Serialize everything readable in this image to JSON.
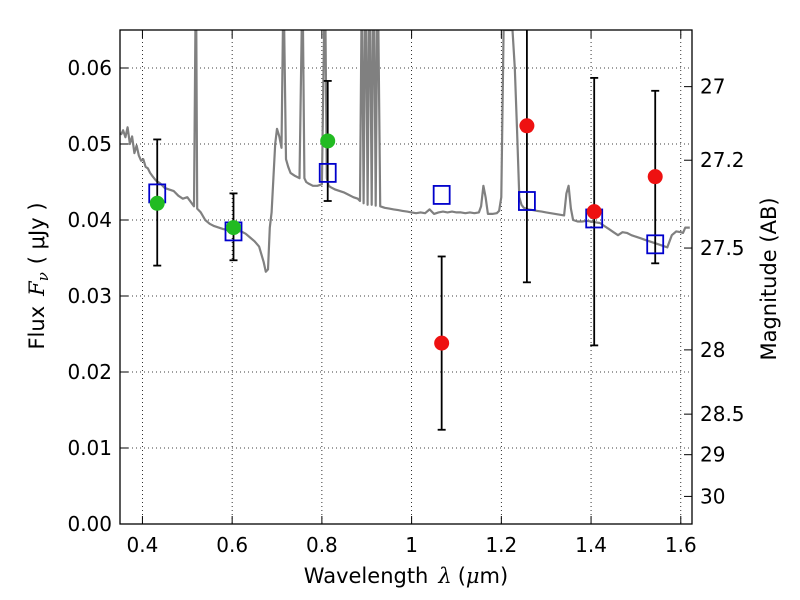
{
  "chart_data": {
    "type": "scatter",
    "title": "",
    "xlabel": "Wavelength",
    "xlabel_symbol": "λ",
    "xlabel_unit_open": "(",
    "xlabel_unit_mu": "μ",
    "xlabel_unit_rest": "m)",
    "ylabel": "Flux",
    "ylabel_symbol_main": "F",
    "ylabel_symbol_sub": "ν",
    "ylabel_unit": "( μJy )",
    "y2label": "Magnitude (AB)",
    "xlim": [
      0.35,
      1.625
    ],
    "ylim": [
      0.0,
      0.065
    ],
    "grid": true,
    "x_ticks": [
      {
        "value": 0.4,
        "label": "0.4"
      },
      {
        "value": 0.6,
        "label": "0.6"
      },
      {
        "value": 0.8,
        "label": "0.8"
      },
      {
        "value": 1.0,
        "label": "1"
      },
      {
        "value": 1.2,
        "label": "1.2"
      },
      {
        "value": 1.4,
        "label": "1.4"
      },
      {
        "value": 1.6,
        "label": "1.6"
      }
    ],
    "y_ticks": [
      {
        "value": 0.0,
        "label": "0.00"
      },
      {
        "value": 0.01,
        "label": "0.01"
      },
      {
        "value": 0.02,
        "label": "0.02"
      },
      {
        "value": 0.03,
        "label": "0.03"
      },
      {
        "value": 0.04,
        "label": "0.04"
      },
      {
        "value": 0.05,
        "label": "0.05"
      },
      {
        "value": 0.06,
        "label": "0.06"
      }
    ],
    "y2_ticks": [
      {
        "value": 27,
        "label": "27"
      },
      {
        "value": 27.2,
        "label": "27.2"
      },
      {
        "value": 27.5,
        "label": "27.5"
      },
      {
        "value": 28,
        "label": "28"
      },
      {
        "value": 28.5,
        "label": "28.5"
      },
      {
        "value": 29,
        "label": "29"
      },
      {
        "value": 30,
        "label": "30"
      }
    ],
    "colors": {
      "model": "#808080",
      "model_flux": "#0000cc",
      "green": "#22bb22",
      "red": "#ee1111",
      "errorbar": "#000000"
    },
    "model_spectrum": {
      "x": [
        0.352,
        0.357,
        0.362,
        0.367,
        0.372,
        0.377,
        0.382,
        0.387,
        0.392,
        0.397,
        0.402,
        0.407,
        0.412,
        0.417,
        0.422,
        0.43,
        0.44,
        0.45,
        0.46,
        0.47,
        0.48,
        0.49,
        0.5,
        0.51,
        0.515,
        0.518,
        0.52,
        0.522,
        0.53,
        0.54,
        0.55,
        0.56,
        0.57,
        0.58,
        0.59,
        0.6,
        0.61,
        0.62,
        0.63,
        0.64,
        0.65,
        0.66,
        0.67,
        0.675,
        0.68,
        0.684,
        0.688,
        0.692,
        0.696,
        0.7,
        0.705,
        0.71,
        0.713,
        0.716,
        0.72,
        0.725,
        0.73,
        0.74,
        0.75,
        0.755,
        0.758,
        0.761,
        0.765,
        0.77,
        0.78,
        0.79,
        0.8,
        0.805,
        0.808,
        0.811,
        0.815,
        0.82,
        0.83,
        0.84,
        0.85,
        0.86,
        0.87,
        0.88,
        0.885,
        0.888,
        0.89,
        0.893,
        0.896,
        0.899,
        0.902,
        0.905,
        0.908,
        0.911,
        0.914,
        0.917,
        0.92,
        0.923,
        0.926,
        0.93,
        0.94,
        0.95,
        0.96,
        0.97,
        0.98,
        0.99,
        1.0,
        1.01,
        1.02,
        1.03,
        1.04,
        1.05,
        1.06,
        1.07,
        1.08,
        1.09,
        1.1,
        1.11,
        1.12,
        1.13,
        1.14,
        1.15,
        1.155,
        1.16,
        1.165,
        1.17,
        1.18,
        1.19,
        1.195,
        1.2,
        1.205,
        1.21,
        1.215,
        1.22,
        1.225,
        1.23,
        1.235,
        1.24,
        1.245,
        1.25,
        1.26,
        1.27,
        1.28,
        1.29,
        1.3,
        1.31,
        1.32,
        1.33,
        1.34,
        1.345,
        1.35,
        1.355,
        1.36,
        1.37,
        1.38,
        1.39,
        1.4,
        1.41,
        1.42,
        1.43,
        1.44,
        1.45,
        1.46,
        1.47,
        1.48,
        1.49,
        1.5,
        1.51,
        1.52,
        1.53,
        1.54,
        1.55,
        1.56,
        1.57,
        1.58,
        1.59,
        1.6,
        1.605,
        1.61,
        1.615,
        1.62
      ],
      "y": [
        0.0512,
        0.0518,
        0.0509,
        0.0522,
        0.05,
        0.051,
        0.0488,
        0.0498,
        0.0485,
        0.0478,
        0.048,
        0.047,
        0.0468,
        0.0462,
        0.0458,
        0.0452,
        0.0448,
        0.0442,
        0.044,
        0.0438,
        0.0432,
        0.0428,
        0.043,
        0.0422,
        0.0418,
        0.065,
        0.065,
        0.0415,
        0.041,
        0.04,
        0.0395,
        0.0392,
        0.039,
        0.0388,
        0.0387,
        0.0386,
        0.0385,
        0.0385,
        0.0382,
        0.0377,
        0.0372,
        0.0365,
        0.0345,
        0.0332,
        0.0335,
        0.039,
        0.041,
        0.0455,
        0.05,
        0.052,
        0.051,
        0.0495,
        0.065,
        0.065,
        0.048,
        0.047,
        0.0462,
        0.0458,
        0.0455,
        0.065,
        0.065,
        0.0455,
        0.045,
        0.0448,
        0.0445,
        0.0445,
        0.0447,
        0.065,
        0.065,
        0.0455,
        0.0445,
        0.0443,
        0.044,
        0.0438,
        0.0436,
        0.0433,
        0.043,
        0.0428,
        0.0425,
        0.065,
        0.065,
        0.0422,
        0.065,
        0.065,
        0.042,
        0.065,
        0.065,
        0.042,
        0.065,
        0.065,
        0.0419,
        0.065,
        0.065,
        0.0418,
        0.0416,
        0.0415,
        0.0414,
        0.0413,
        0.0412,
        0.0411,
        0.041,
        0.0409,
        0.041,
        0.0409,
        0.0414,
        0.0408,
        0.041,
        0.0411,
        0.041,
        0.0411,
        0.041,
        0.041,
        0.0409,
        0.041,
        0.0409,
        0.041,
        0.0418,
        0.0445,
        0.043,
        0.0408,
        0.0408,
        0.0409,
        0.0412,
        0.043,
        0.065,
        0.065,
        0.065,
        0.065,
        0.065,
        0.06,
        0.052,
        0.043,
        0.042,
        0.0416,
        0.0414,
        0.0413,
        0.0412,
        0.0411,
        0.041,
        0.0409,
        0.0408,
        0.0407,
        0.0406,
        0.0435,
        0.0445,
        0.0415,
        0.04,
        0.0398,
        0.0398,
        0.0399,
        0.0398,
        0.0397,
        0.0396,
        0.0392,
        0.0388,
        0.0384,
        0.038,
        0.0384,
        0.0383,
        0.038,
        0.0378,
        0.0376,
        0.0374,
        0.0372,
        0.037,
        0.0368,
        0.0366,
        0.0364,
        0.038,
        0.0385,
        0.0384,
        0.0383,
        0.039,
        0.039,
        0.039
      ]
    },
    "model_flux_points": {
      "x": [
        0.433,
        0.603,
        0.813,
        1.067,
        1.257,
        1.407,
        1.543
      ],
      "y": [
        0.0435,
        0.0385,
        0.0462,
        0.0433,
        0.0425,
        0.0402,
        0.0368
      ]
    },
    "observed_green": {
      "x": [
        0.433,
        0.603,
        0.813
      ],
      "y": [
        0.0422,
        0.039,
        0.0504
      ],
      "yerr_low": [
        0.034,
        0.0347,
        0.0425
      ],
      "yerr_high": [
        0.0506,
        0.0435,
        0.0583
      ]
    },
    "observed_red": {
      "x": [
        1.067,
        1.257,
        1.407,
        1.543
      ],
      "y": [
        0.0238,
        0.0524,
        0.0411,
        0.0457
      ],
      "yerr_low": [
        0.0124,
        0.0318,
        0.0235,
        0.0343
      ],
      "yerr_high": [
        0.0352,
        0.065,
        0.0587,
        0.057
      ]
    }
  }
}
